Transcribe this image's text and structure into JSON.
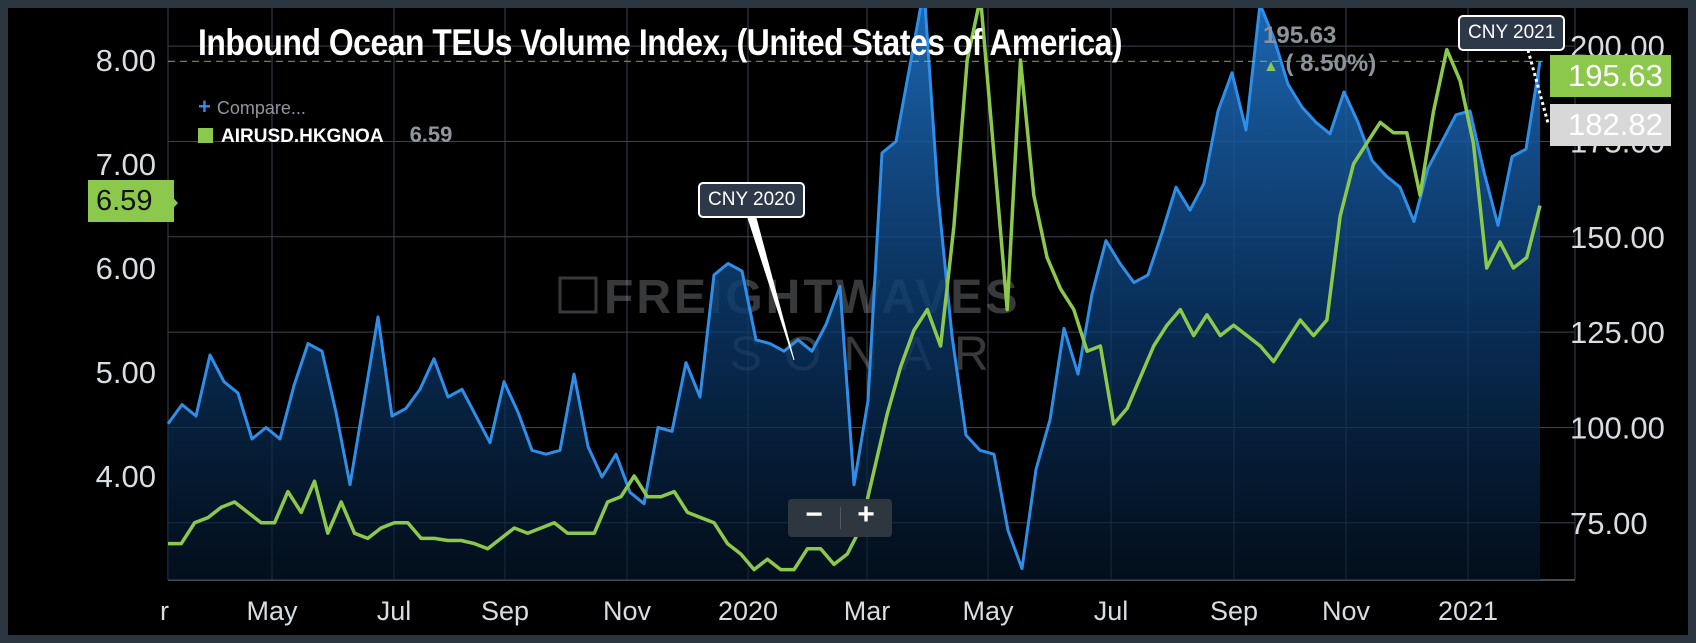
{
  "chart_data": {
    "type": "line",
    "title": "Inbound Ocean TEUs Volume Index, (United States of America)",
    "x_tick_labels": [
      "r",
      "May",
      "Jul",
      "Sep",
      "Nov",
      "2020",
      "Mar",
      "May",
      "Jul",
      "Sep",
      "Nov",
      "2021"
    ],
    "y_left": {
      "ticks": [
        "8.00",
        "7.00",
        "6.00",
        "5.00",
        "4.00"
      ],
      "range": [
        3.0,
        8.5
      ]
    },
    "y_right": {
      "ticks": [
        "200.00",
        "175.00",
        "150.00",
        "125.00",
        "100.00",
        "75.00"
      ],
      "range": [
        60,
        210
      ]
    },
    "grid": true,
    "series": [
      {
        "name": "Inbound Ocean TEUs Volume Index, (United States of America)",
        "axis": "right",
        "color": "#2f8ee8",
        "fill": true,
        "values": [
          101,
          106,
          103,
          119,
          112,
          109,
          97,
          100,
          97,
          111,
          122,
          120,
          104,
          85,
          107,
          129,
          103,
          105,
          110,
          118,
          108,
          110,
          103,
          96,
          112,
          104,
          94,
          93,
          94,
          114,
          95,
          87,
          93,
          83,
          80,
          100,
          99,
          117,
          108,
          140,
          143,
          141,
          123,
          122,
          120,
          123,
          120,
          127,
          137,
          85,
          107,
          172,
          175,
          195,
          215,
          161,
          124,
          98,
          94,
          93,
          73,
          63,
          89,
          102,
          126,
          114,
          135,
          149,
          143,
          138,
          140,
          151,
          163,
          157,
          164,
          183,
          193,
          178,
          211,
          202,
          190,
          184,
          180,
          177,
          188,
          180,
          170,
          166,
          163,
          154,
          168,
          175,
          182,
          183,
          167,
          153,
          171,
          173,
          196
        ]
      },
      {
        "name": "AIRUSD.HKGNOA",
        "axis": "left",
        "color": "#8cc84b",
        "values": [
          3.35,
          3.35,
          3.55,
          3.6,
          3.7,
          3.75,
          3.65,
          3.55,
          3.55,
          3.85,
          3.65,
          3.95,
          3.45,
          3.75,
          3.45,
          3.4,
          3.5,
          3.55,
          3.55,
          3.4,
          3.4,
          3.38,
          3.38,
          3.35,
          3.3,
          3.4,
          3.5,
          3.45,
          3.5,
          3.55,
          3.45,
          3.45,
          3.45,
          3.75,
          3.8,
          4.0,
          3.8,
          3.8,
          3.85,
          3.65,
          3.6,
          3.55,
          3.35,
          3.25,
          3.1,
          3.2,
          3.1,
          3.1,
          3.3,
          3.3,
          3.15,
          3.25,
          3.5,
          4.05,
          4.6,
          5.05,
          5.4,
          5.6,
          5.25,
          6.4,
          8.0,
          8.6,
          7.1,
          5.6,
          8.0,
          6.7,
          6.1,
          5.8,
          5.6,
          5.2,
          5.25,
          4.5,
          4.65,
          4.95,
          5.25,
          5.45,
          5.6,
          5.35,
          5.55,
          5.35,
          5.45,
          5.35,
          5.25,
          5.1,
          5.3,
          5.5,
          5.35,
          5.5,
          6.5,
          7.0,
          7.2,
          7.4,
          7.3,
          7.3,
          6.7,
          7.5,
          8.1,
          7.8,
          7.2,
          6.0,
          6.25,
          6.0,
          6.1,
          6.6
        ]
      }
    ],
    "annotations": [
      "CNY 2020",
      "CNY 2021"
    ],
    "last_values": {
      "left_series": "6.59",
      "right_series": "195.63",
      "compare": "182.82"
    }
  },
  "header": {
    "title": "Inbound Ocean TEUs Volume Index, (United States of America)",
    "change_value": "195.63",
    "change_pct": "( 8.50%)"
  },
  "legend": {
    "compare_label": "Compare...",
    "series_label": "AIRUSD.HKGNOA",
    "series_value": "6.59"
  },
  "tags": {
    "left_value": "6.59",
    "right_value": "195.63",
    "compare_value": "182.82"
  },
  "callouts": {
    "cny2020": "CNY 2020",
    "cny2021": "CNY 2021"
  },
  "watermark": {
    "line1": "FREIGHTWAVES",
    "line2": "SONAR"
  },
  "zoom": {
    "minus": "−",
    "plus": "+"
  }
}
